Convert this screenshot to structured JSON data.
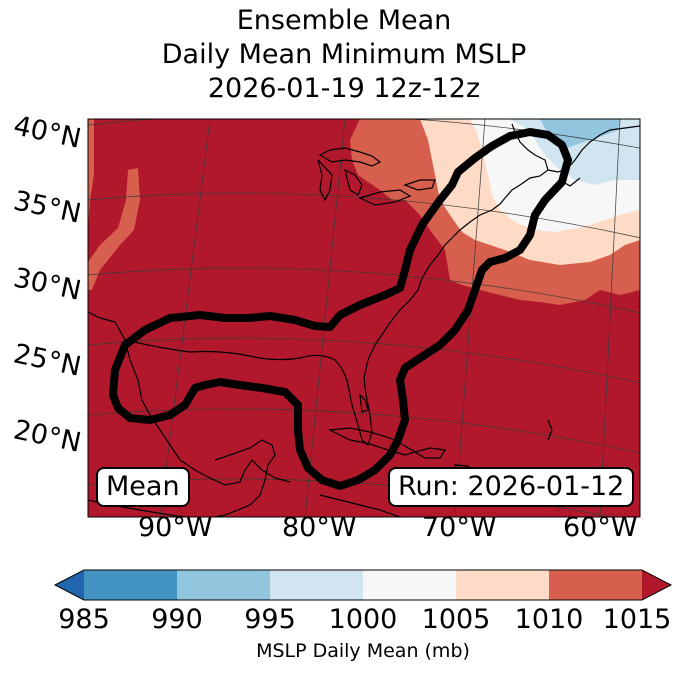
{
  "title": {
    "line1": "Ensemble Mean",
    "line2": "Daily Mean Minimum MSLP",
    "line3": "2026-01-19 12z-12z"
  },
  "map": {
    "lat_labels": [
      "40°N",
      "35°N",
      "30°N",
      "25°N",
      "20°N"
    ],
    "lon_labels": [
      "90°W",
      "80°W",
      "70°W",
      "60°W"
    ],
    "mean_box": "Mean",
    "run_box": "Run: 2026-01-12",
    "contour_color": "#000000"
  },
  "colorbar": {
    "ticks": [
      "985",
      "990",
      "995",
      "1000",
      "1005",
      "1010",
      "1015"
    ],
    "colors": [
      "#2166ac",
      "#4393c3",
      "#92c5de",
      "#d1e5f0",
      "#f7f7f7",
      "#fddbc7",
      "#d6604d",
      "#b2182b"
    ],
    "label": "MSLP Daily Mean (mb)"
  }
}
